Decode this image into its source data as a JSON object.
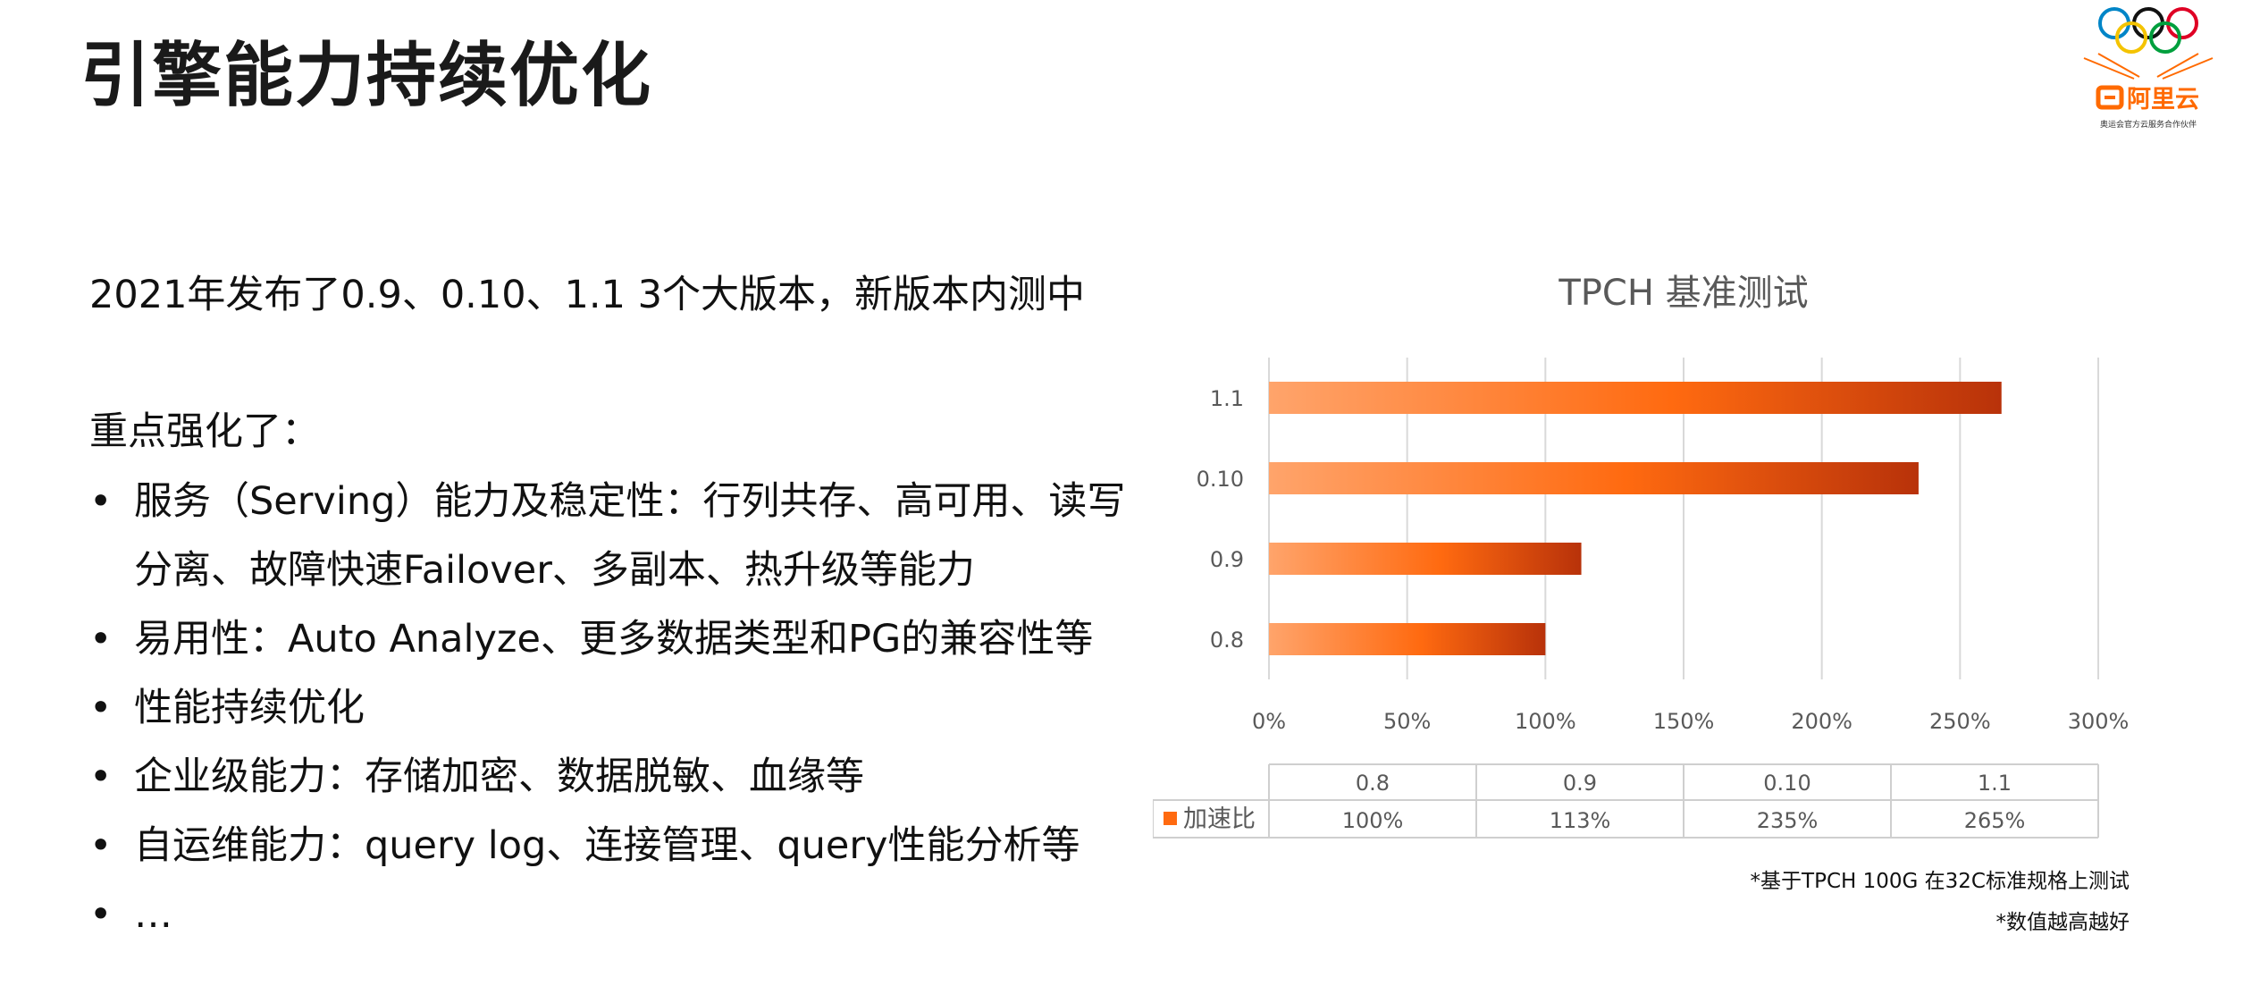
{
  "title": "引擎能力持续优化",
  "intro": "2021年发布了0.9、0.10、1.1 3个大版本，新版本内测中",
  "subhead": "重点强化了：",
  "bullets": [
    "服务（Serving）能力及稳定性：行列共存、高可用、读写分离、故障快速Failover、多副本、热升级等能力",
    "易用性：Auto Analyze、更多数据类型和PG的兼容性等",
    "性能持续优化",
    "企业级能力：存储加密、数据脱敏、血缘等",
    "自运维能力：query log、连接管理、query性能分析等",
    "…"
  ],
  "bullet_symbol": "•",
  "logo": {
    "brand": "阿里云",
    "tagline": "奥运会官方云服务合作伙伴",
    "brand_color": "#ff6a00"
  },
  "footnotes": [
    "*基于TPCH 100G 在32C标准规格上测试",
    "*数值越高越好"
  ],
  "chart_data": {
    "type": "bar",
    "orientation": "horizontal",
    "title": "TPCH 基准测试",
    "categories": [
      "0.8",
      "0.9",
      "0.10",
      "1.1"
    ],
    "series": [
      {
        "name": "加速比",
        "values": [
          100,
          113,
          235,
          265
        ]
      }
    ],
    "xlim": [
      0,
      300
    ],
    "xticks": [
      0,
      50,
      100,
      150,
      200,
      250,
      300
    ],
    "tick_format": "percent",
    "grid": "vertical",
    "data_table": {
      "header": [
        "0.8",
        "0.9",
        "0.10",
        "1.1"
      ],
      "row_label": "加速比",
      "row": [
        "100%",
        "113%",
        "235%",
        "265%"
      ]
    },
    "colors": {
      "bar_light": "#ffa46b",
      "bar_mid": "#ff6a10",
      "bar_dark": "#b8320a",
      "grid": "#d9d9d9",
      "axis_text": "#595959"
    }
  }
}
